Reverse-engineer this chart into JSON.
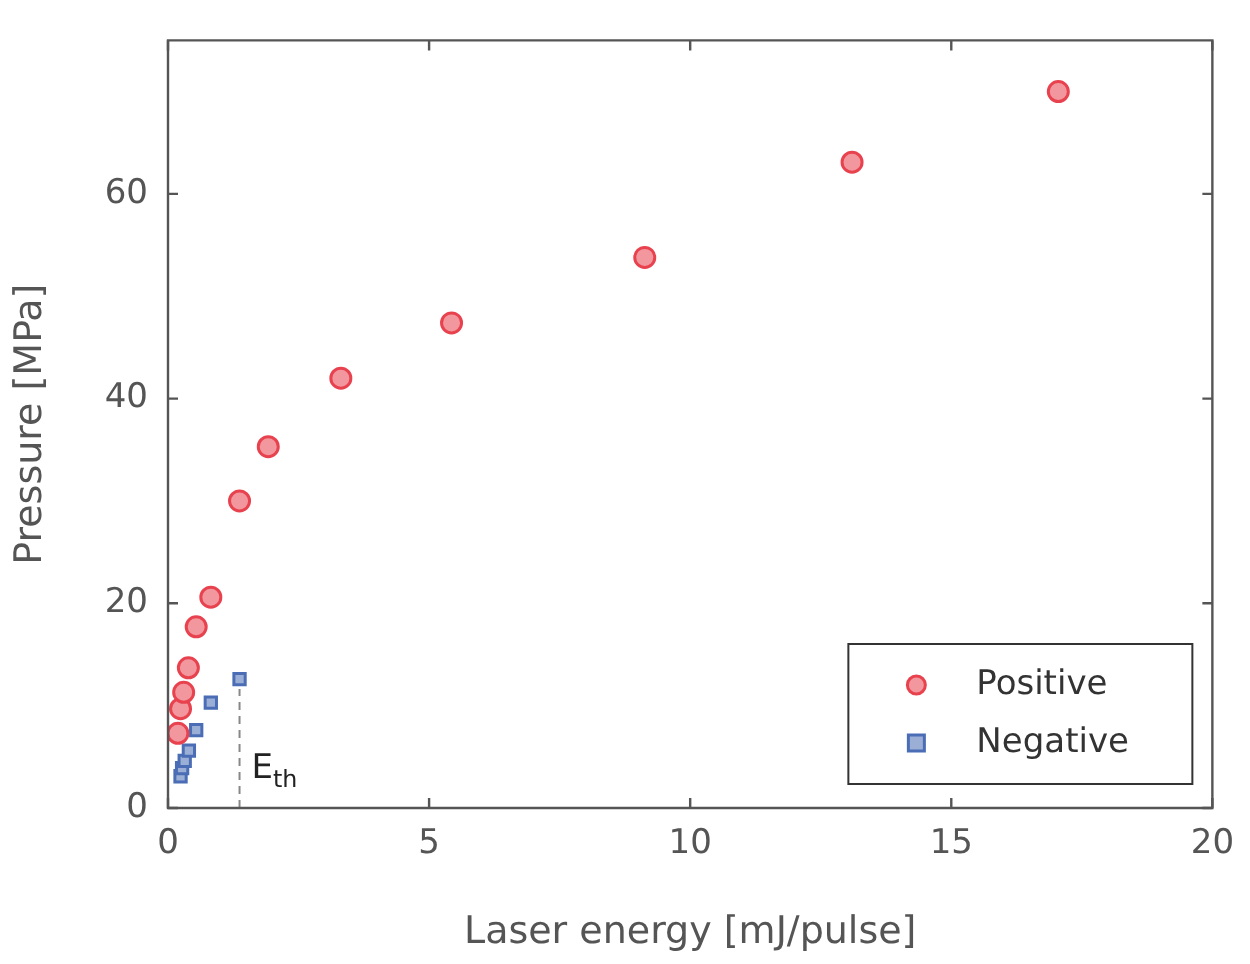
{
  "chart_data": {
    "type": "scatter",
    "xlabel": "Laser energy [mJ/pulse]",
    "ylabel": "Pressure [MPa]",
    "xlim": [
      0,
      20
    ],
    "xticks": [
      0,
      5,
      10,
      15,
      20
    ],
    "ylim": [
      0,
      75
    ],
    "yticks": [
      0,
      20,
      40,
      60
    ],
    "grid": false,
    "legend": "bottom right",
    "series": [
      {
        "name": "Positive",
        "color": "#e8424f",
        "marker": "circle",
        "x": [
          0.19,
          0.24,
          0.3,
          0.39,
          0.54,
          0.82,
          1.37,
          1.92,
          3.31,
          5.43,
          9.13,
          13.1,
          17.05
        ],
        "values": [
          7.3,
          9.7,
          11.3,
          13.7,
          17.7,
          20.6,
          30.0,
          35.3,
          42.0,
          47.4,
          53.8,
          63.1,
          70.0
        ]
      },
      {
        "name": "Negative",
        "color": "#4a6db5",
        "marker": "square",
        "x": [
          0.24,
          0.27,
          0.32,
          0.4,
          0.54,
          0.82,
          1.37
        ],
        "values": [
          3.1,
          3.9,
          4.6,
          5.6,
          7.6,
          10.3,
          12.6
        ]
      }
    ],
    "ref_lines": [
      {
        "axis": "x",
        "value": 1.37,
        "label": "E$_{th}$",
        "line_style": "dashed",
        "color": "#888888"
      }
    ]
  }
}
